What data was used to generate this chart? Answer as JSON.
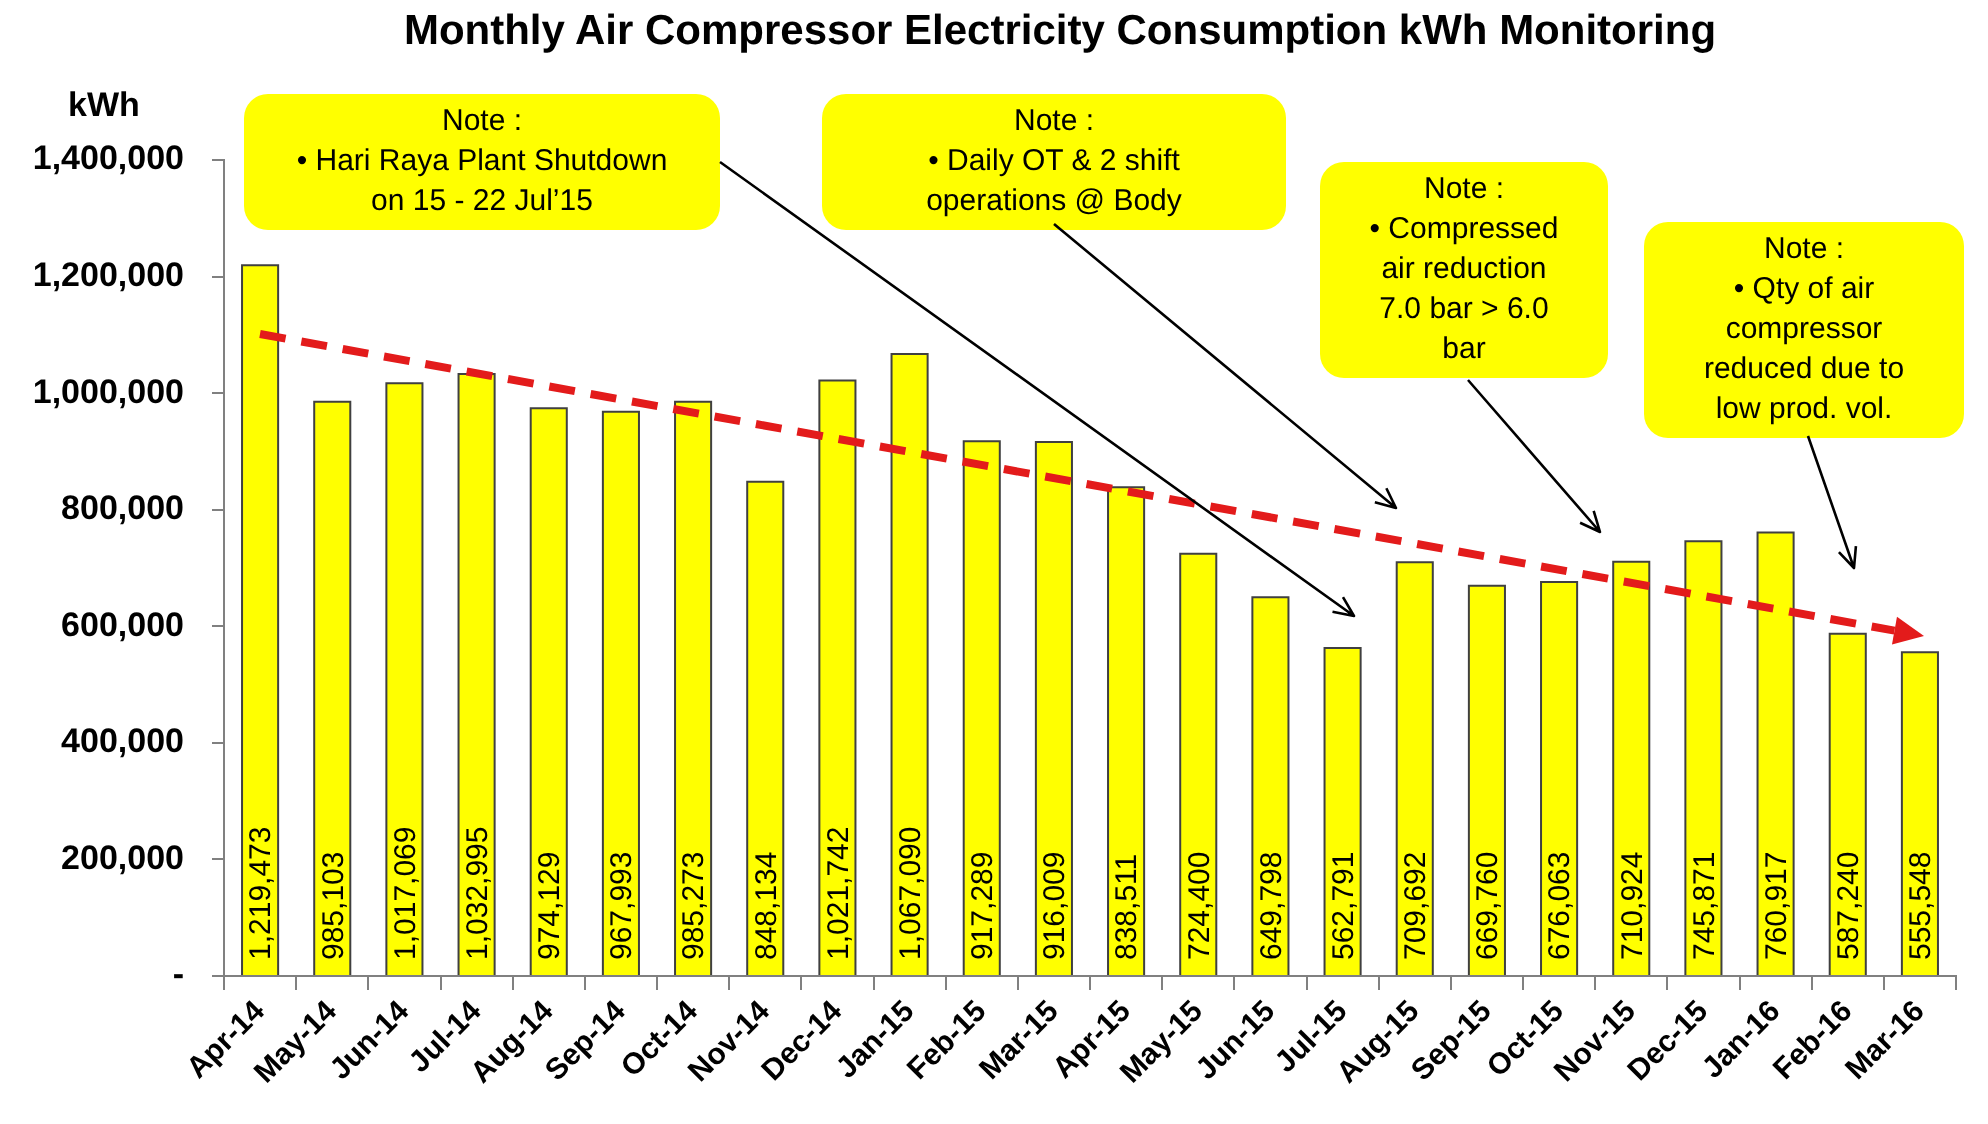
{
  "chart_data": {
    "type": "bar",
    "title": "Monthly Air Compressor Electricity Consumption kWh Monitoring",
    "ylabel": "kWh",
    "categories": [
      "Apr-14",
      "May-14",
      "Jun-14",
      "Jul-14",
      "Aug-14",
      "Sep-14",
      "Oct-14",
      "Nov-14",
      "Dec-14",
      "Jan-15",
      "Feb-15",
      "Mar-15",
      "Apr-15",
      "May-15",
      "Jun-15",
      "Jul-15",
      "Aug-15",
      "Sep-15",
      "Oct-15",
      "Nov-15",
      "Dec-15",
      "Jan-16",
      "Feb-16",
      "Mar-16"
    ],
    "color": "#ffff00",
    "values": [
      1219473,
      985103,
      1017069,
      1032995,
      974129,
      967993,
      985273,
      848134,
      1021742,
      1067090,
      917289,
      916009,
      838511,
      724400,
      649798,
      562791,
      709692,
      669760,
      676063,
      710924,
      745871,
      760917,
      587240,
      555548
    ],
    "value_labels": [
      "1,219,473",
      "985,103",
      "1,017,069",
      "1,032,995",
      "974,129",
      "967,993",
      "985,273",
      "848,134",
      "1,021,742",
      "1,067,090",
      "917,289",
      "916,009",
      "838,511",
      "724,400",
      "649,798",
      "562,791",
      "709,692",
      "669,760",
      "676,063",
      "710,924",
      "745,871",
      "760,917",
      "587,240",
      "555,548"
    ],
    "ylim": [
      0,
      1400000
    ],
    "yticks": [
      {
        "value": 0,
        "label": "-"
      },
      {
        "value": 200000,
        "label": "200,000"
      },
      {
        "value": 400000,
        "label": "400,000"
      },
      {
        "value": 600000,
        "label": "600,000"
      },
      {
        "value": 800000,
        "label": "800,000"
      },
      {
        "value": 1000000,
        "label": "1,000,000"
      },
      {
        "value": 1200000,
        "label": "1,200,000"
      },
      {
        "value": 1400000,
        "label": "1,400,000"
      }
    ],
    "annotations": [
      "Note :\n• Hari Raya Plant Shutdown on 15 - 22 Jul’15",
      "Note :\n• Daily OT & 2 shift operations @ Body",
      "Note :\n• Compressed air reduction 7.0 bar > 6.0 bar",
      "Note :\n• Qty of air compressor reduced due to low prod. vol."
    ]
  }
}
